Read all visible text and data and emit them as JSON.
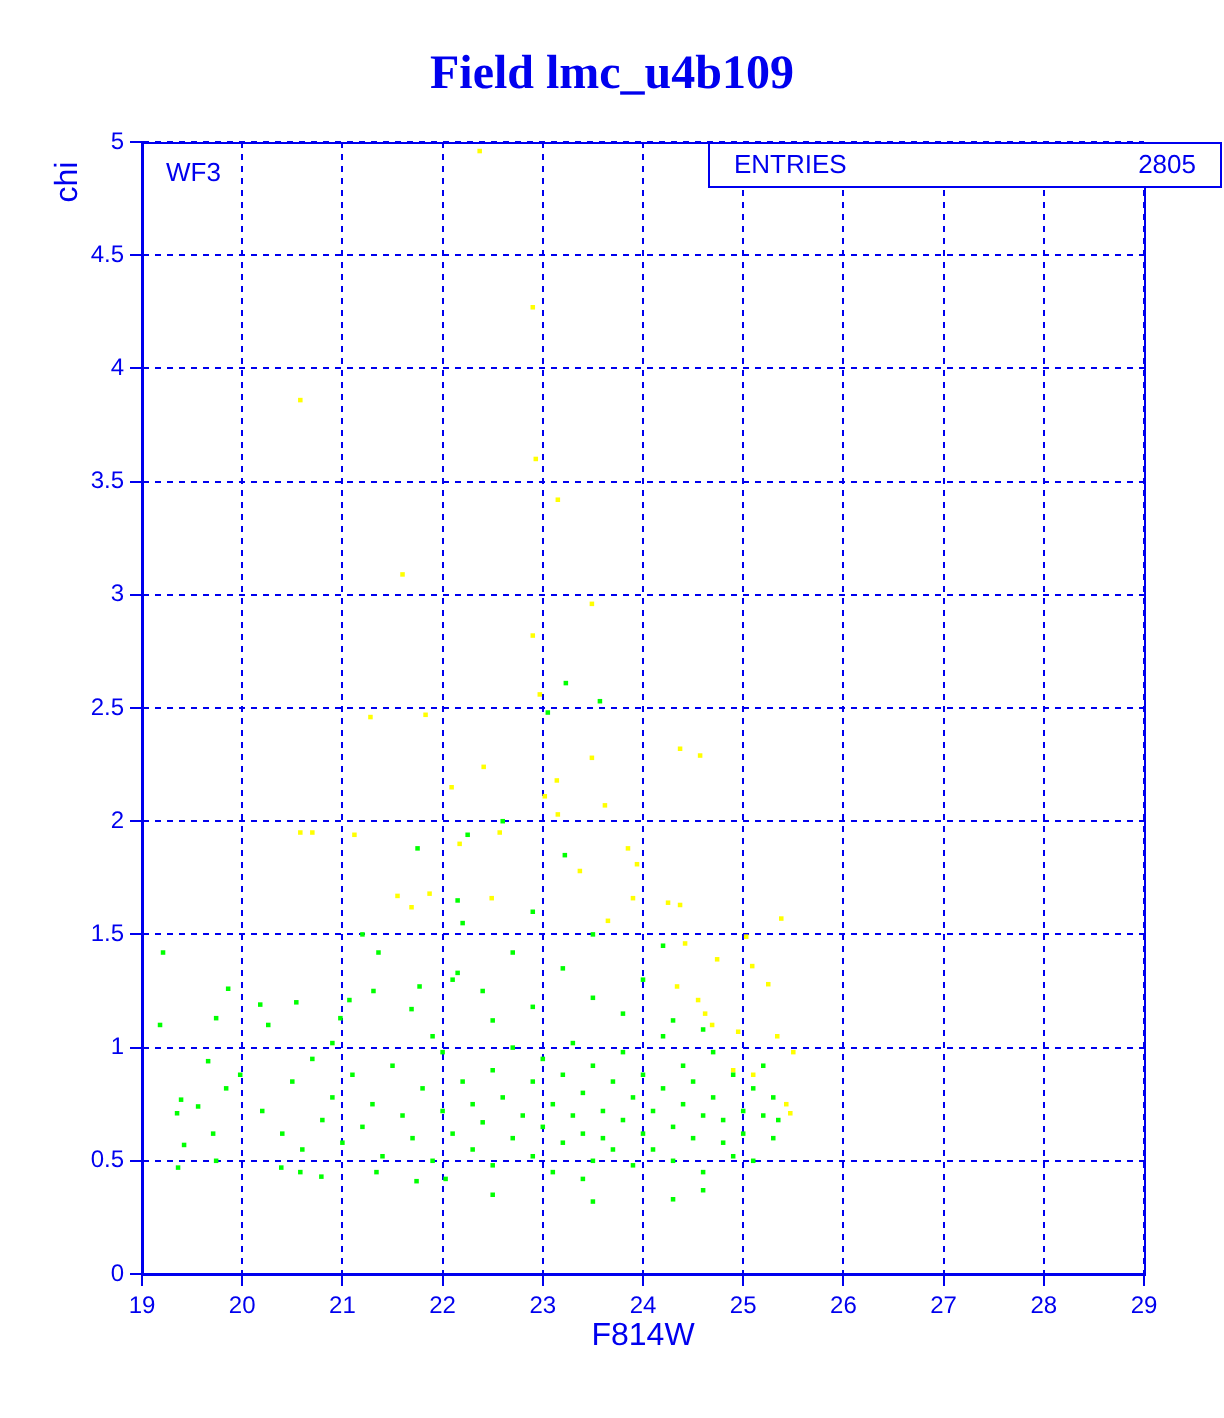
{
  "chart_data": {
    "type": "scatter",
    "title": "Field lmc_u4b109",
    "xlabel": "F814W",
    "ylabel": "chi",
    "annotations": [
      "WF3",
      "ENTRIES",
      "2805"
    ],
    "xlim": [
      19,
      29
    ],
    "xticks": [
      19,
      20,
      21,
      22,
      23,
      24,
      25,
      26,
      27,
      28,
      29
    ],
    "ylim": [
      0,
      5
    ],
    "yticks": [
      0,
      0.5,
      1,
      1.5,
      2,
      2.5,
      3,
      3.5,
      4,
      4.5,
      5
    ],
    "grid": true,
    "marker": "square",
    "series": [
      {
        "color": "#00ff00",
        "x": [
          23.23,
          23.57,
          23.05,
          21.75,
          22.25,
          22.15,
          19.21,
          21.36,
          19.86,
          20.54,
          21.07,
          20.18,
          21.31,
          21.77,
          19.18,
          20.26,
          20.98,
          21.69,
          22.15,
          19.74,
          19.66,
          19.98,
          19.84,
          19.39,
          19.56,
          19.35,
          19.71,
          19.42,
          19.36,
          19.74,
          20.39,
          20.58,
          20.79,
          21.34,
          21.74,
          22.03,
          20.2,
          20.4,
          20.5,
          20.6,
          20.7,
          20.8,
          20.9,
          21.0,
          21.1,
          21.2,
          21.3,
          21.4,
          21.5,
          21.6,
          21.7,
          21.8,
          21.9,
          22.0,
          22.0,
          22.1,
          22.2,
          22.3,
          22.3,
          22.4,
          22.5,
          22.5,
          22.6,
          22.7,
          22.7,
          22.8,
          22.9,
          22.9,
          23.0,
          23.0,
          23.1,
          23.1,
          23.2,
          23.2,
          23.3,
          23.3,
          23.4,
          23.4,
          23.5,
          23.5,
          23.6,
          23.6,
          23.7,
          23.7,
          23.8,
          23.8,
          23.9,
          23.9,
          24.0,
          24.0,
          24.1,
          24.1,
          24.2,
          24.2,
          24.3,
          24.3,
          24.4,
          24.4,
          24.5,
          24.5,
          24.6,
          24.6,
          24.7,
          24.7,
          24.8,
          24.8,
          24.9,
          24.9,
          25.0,
          25.0,
          25.1,
          25.1,
          25.2,
          25.2,
          25.3,
          25.3,
          25.35,
          22.5,
          23.5,
          24.3,
          24.6,
          23.4,
          22.1,
          22.4,
          22.7,
          22.9,
          23.2,
          23.5,
          23.8,
          24.0,
          24.3,
          24.6,
          22.2,
          22.9,
          23.5,
          24.2,
          22.6,
          21.2,
          22.5,
          21.9,
          20.9,
          23.22
        ],
        "values": [
          2.61,
          2.53,
          2.48,
          1.88,
          1.94,
          1.65,
          1.42,
          1.42,
          1.26,
          1.2,
          1.21,
          1.19,
          1.25,
          1.27,
          1.1,
          1.1,
          1.13,
          1.17,
          1.33,
          1.13,
          0.94,
          0.88,
          0.82,
          0.77,
          0.74,
          0.71,
          0.62,
          0.57,
          0.47,
          0.5,
          0.47,
          0.45,
          0.43,
          0.45,
          0.41,
          0.42,
          0.72,
          0.62,
          0.85,
          0.55,
          0.95,
          0.68,
          0.78,
          0.58,
          0.88,
          0.65,
          0.75,
          0.52,
          0.92,
          0.7,
          0.6,
          0.82,
          0.5,
          0.72,
          0.98,
          0.62,
          0.85,
          0.55,
          0.75,
          0.67,
          0.9,
          0.48,
          0.78,
          0.6,
          1.0,
          0.7,
          0.52,
          0.85,
          0.65,
          0.95,
          0.75,
          0.45,
          0.58,
          0.88,
          0.7,
          1.02,
          0.62,
          0.8,
          0.5,
          0.92,
          0.72,
          0.6,
          0.85,
          0.55,
          0.68,
          0.98,
          0.78,
          0.48,
          0.62,
          0.88,
          0.72,
          0.55,
          0.82,
          1.05,
          0.65,
          0.5,
          0.75,
          0.92,
          0.6,
          0.85,
          0.7,
          0.45,
          0.78,
          0.98,
          0.58,
          0.68,
          0.88,
          0.52,
          0.72,
          0.62,
          0.82,
          0.5,
          0.7,
          0.92,
          0.6,
          0.78,
          0.68,
          0.35,
          0.32,
          0.33,
          0.37,
          0.42,
          1.3,
          1.25,
          1.42,
          1.18,
          1.35,
          1.22,
          1.15,
          1.3,
          1.12,
          1.08,
          1.55,
          1.6,
          1.5,
          1.45,
          2.0,
          1.5,
          1.12,
          1.05,
          1.02,
          1.85
        ]
      },
      {
        "color": "#ffff00",
        "x": [
          22.37,
          22.9,
          20.58,
          22.93,
          23.15,
          21.6,
          23.49,
          22.9,
          22.97,
          21.28,
          21.83,
          24.37,
          24.57,
          23.49,
          22.41,
          20.58,
          23.14,
          23.02,
          23.62,
          23.15,
          22.57,
          23.85,
          23.94,
          23.37,
          22.49,
          23.9,
          24.25,
          24.37,
          23.65,
          25.38,
          25.03,
          24.42,
          24.74,
          25.09,
          25.25,
          24.34,
          24.55,
          24.62,
          24.69,
          25.34,
          24.95,
          25.5,
          24.9,
          25.1,
          25.43,
          25.47,
          20.7,
          21.12,
          22.17,
          21.55,
          21.87,
          21.69,
          22.09
        ],
        "values": [
          4.96,
          4.27,
          3.86,
          3.6,
          3.42,
          3.09,
          2.96,
          2.82,
          2.56,
          2.46,
          2.47,
          2.32,
          2.29,
          2.28,
          2.24,
          1.95,
          2.18,
          2.11,
          2.07,
          2.03,
          1.95,
          1.88,
          1.81,
          1.78,
          1.66,
          1.66,
          1.64,
          1.63,
          1.56,
          1.57,
          1.49,
          1.46,
          1.39,
          1.36,
          1.28,
          1.27,
          1.21,
          1.15,
          1.1,
          1.05,
          1.07,
          0.98,
          0.9,
          0.88,
          0.75,
          0.71,
          1.95,
          1.94,
          1.9,
          1.67,
          1.68,
          1.62,
          2.15
        ]
      }
    ]
  }
}
